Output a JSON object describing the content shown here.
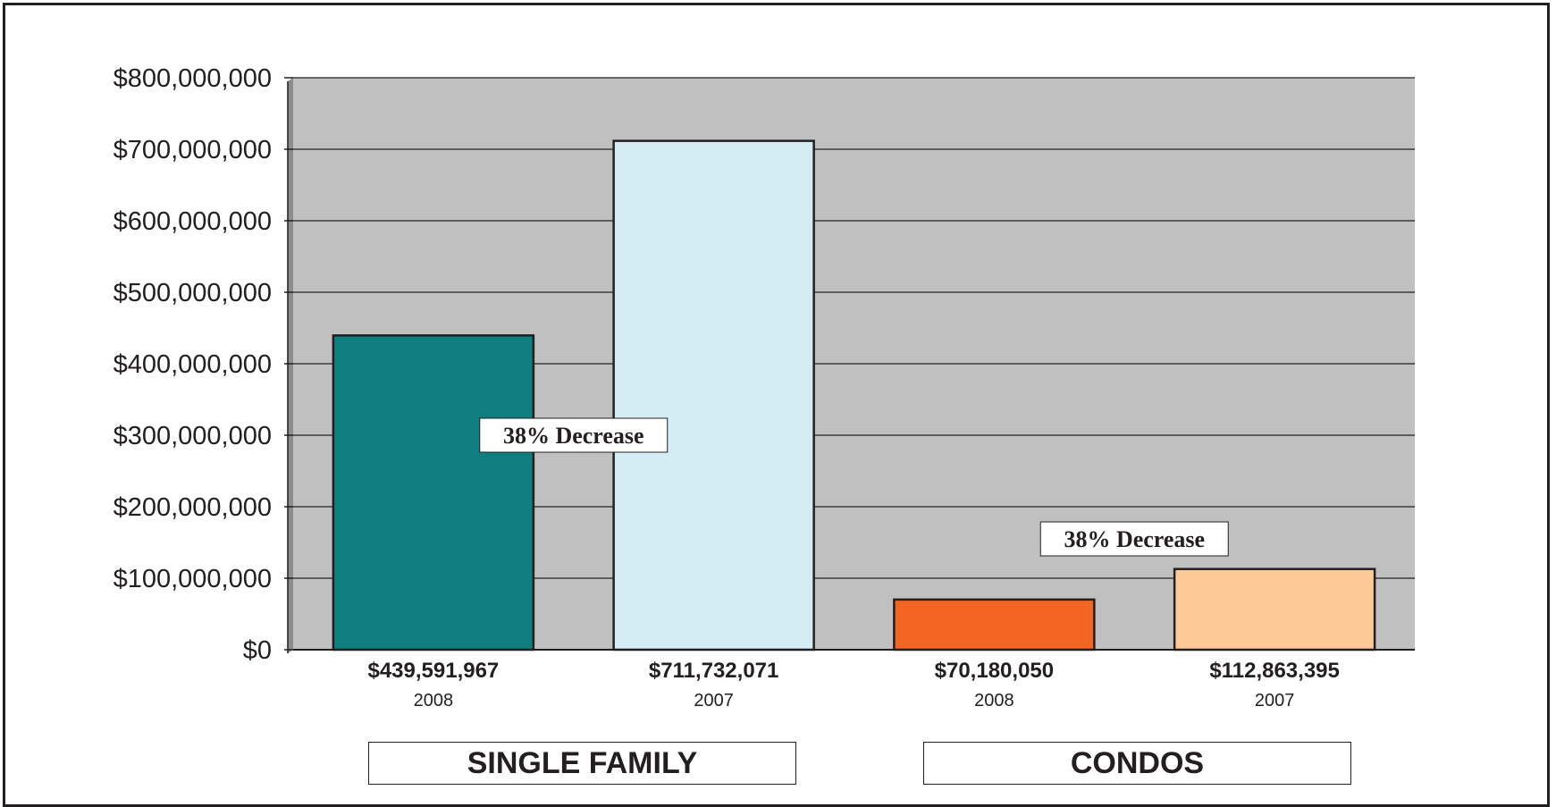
{
  "chart_data": {
    "type": "bar",
    "ylim": [
      0,
      800000000
    ],
    "yticks": [
      0,
      100000000,
      200000000,
      300000000,
      400000000,
      500000000,
      600000000,
      700000000,
      800000000
    ],
    "ytick_labels": [
      "$0",
      "$100,000,000",
      "$200,000,000",
      "$300,000,000",
      "$400,000,000",
      "$500,000,000",
      "$600,000,000",
      "$700,000,000",
      "$800,000,000"
    ],
    "grid": true,
    "plot_background": "#c0c0c0",
    "bars": [
      {
        "group": "SINGLE FAMILY",
        "year": "2008",
        "value": 439591967,
        "label": "$439,591,967",
        "color": "#0e7e7e"
      },
      {
        "group": "SINGLE FAMILY",
        "year": "2007",
        "value": 711732071,
        "label": "$711,732,071",
        "color": "#d4ecf3"
      },
      {
        "group": "CONDOS",
        "year": "2008",
        "value": 70180050,
        "label": "$70,180,050",
        "color": "#f26522"
      },
      {
        "group": "CONDOS",
        "year": "2007",
        "value": 112863395,
        "label": "$112,863,395",
        "color": "#fdca97"
      }
    ],
    "groups": [
      "SINGLE FAMILY",
      "CONDOS"
    ],
    "annotations": [
      {
        "text": "38% Decrease",
        "group": "SINGLE FAMILY",
        "value": 300000000
      },
      {
        "text": "38% Decrease",
        "group": "CONDOS",
        "value": 155000000
      }
    ]
  }
}
